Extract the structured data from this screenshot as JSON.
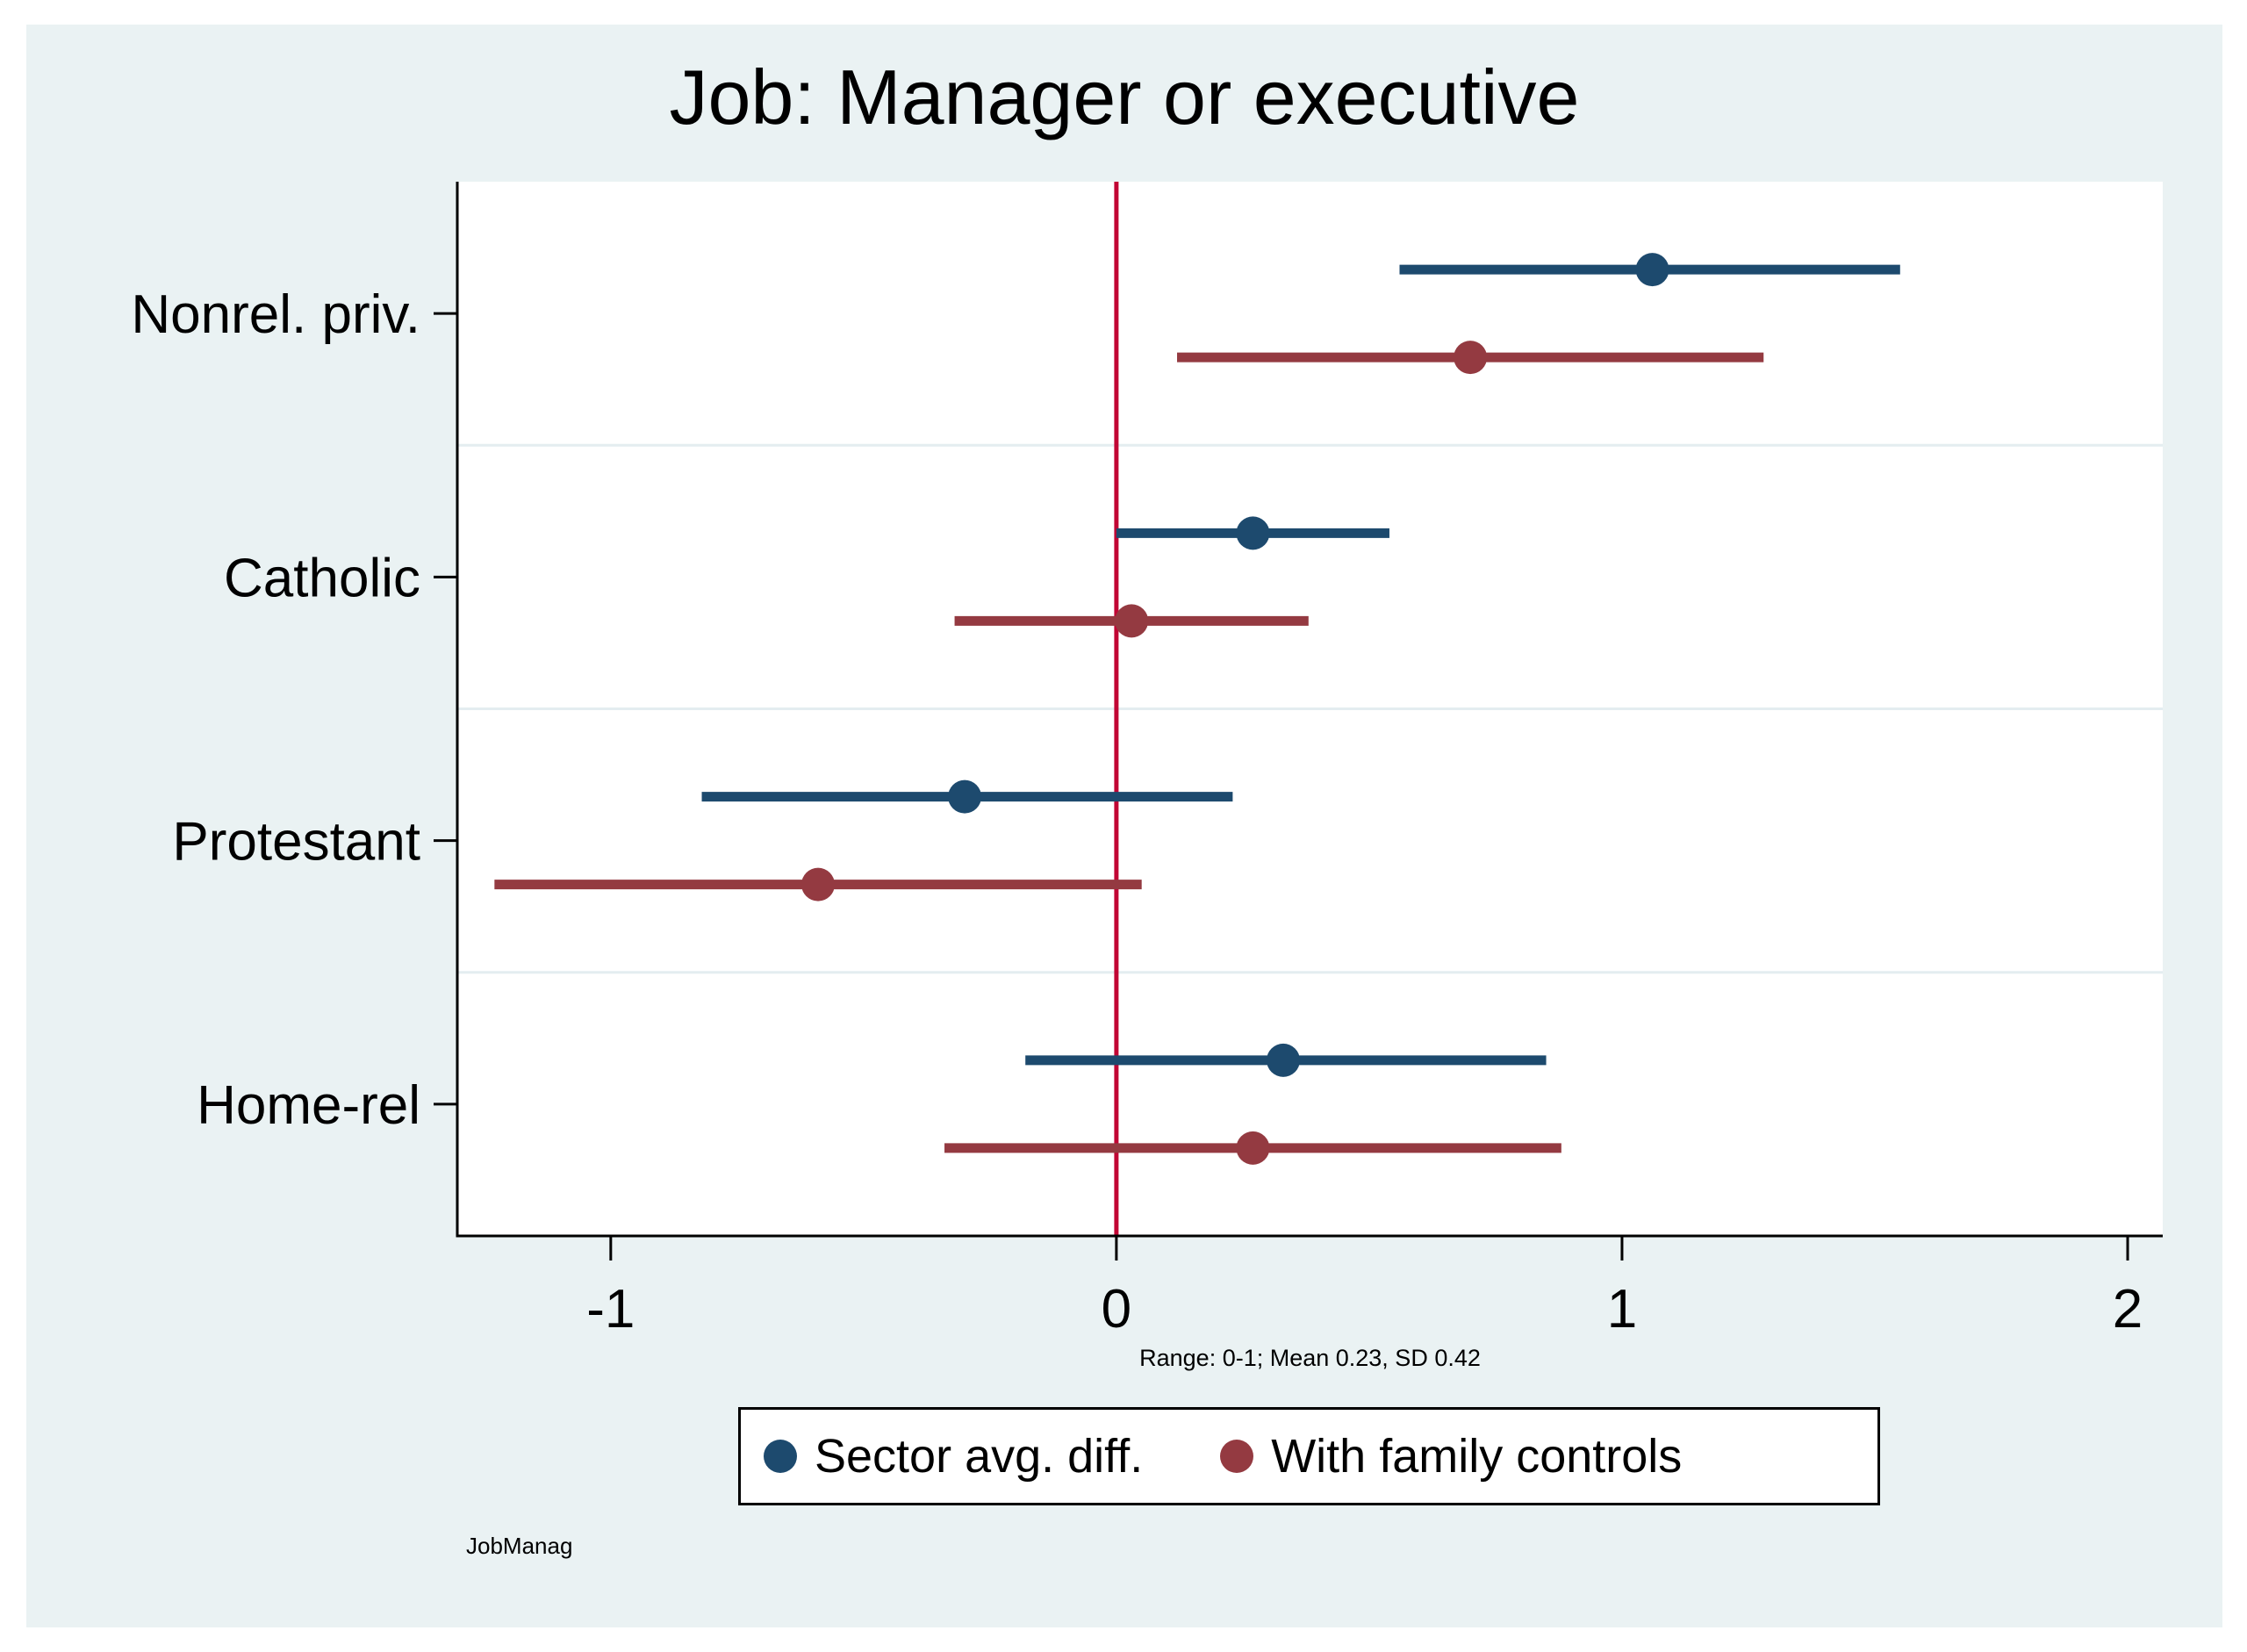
{
  "page": {
    "title": "Job: Manager or executive",
    "note": "JobManag"
  },
  "x_axis_subtitle": "Range: 0-1; Mean 0.23, SD 0.42",
  "legend": {
    "items": [
      {
        "label": "Sector avg. diff.",
        "color": "#1d4a6e"
      },
      {
        "label": "With family controls",
        "color": "#943a41"
      }
    ]
  },
  "colors": {
    "panel_background": "#eaf2f3",
    "plot_background": "#ffffff",
    "gridline": "#e4edf0",
    "zero_line": "#c10534",
    "axis": "#000000",
    "navy_series": "#1d4a6e",
    "maroon_series": "#943a41"
  },
  "chart_data": {
    "type": "scatter",
    "subtype": "coefficient-plot-with-ci",
    "title": "Job: Manager or executive",
    "categories": [
      "Nonrel. priv.",
      "Catholic",
      "Protestant",
      "Home-rel"
    ],
    "series": [
      {
        "name": "Sector avg. diff.",
        "color": "#1d4a6e",
        "estimates": [
          1.06,
          0.27,
          -0.3,
          0.33
        ],
        "ci_low": [
          0.56,
          0.0,
          -0.82,
          -0.18
        ],
        "ci_high": [
          1.55,
          0.54,
          0.23,
          0.85
        ]
      },
      {
        "name": "With family controls",
        "color": "#943a41",
        "estimates": [
          0.7,
          0.03,
          -0.59,
          0.27
        ],
        "ci_low": [
          0.12,
          -0.32,
          -1.23,
          -0.34
        ],
        "ci_high": [
          1.28,
          0.38,
          0.05,
          0.88
        ]
      }
    ],
    "x_ticks": [
      "-1",
      "0",
      "1",
      "2"
    ],
    "x_tick_values": [
      -1,
      0,
      1,
      2
    ],
    "xlim": [
      -1.3035,
      2.0694
    ],
    "zero_line_x": 0,
    "xlabel": "Range: 0-1; Mean 0.23, SD 0.42",
    "ylabel": "",
    "grid": "horizontal-band-separators",
    "legend_position": "bottom-center"
  }
}
